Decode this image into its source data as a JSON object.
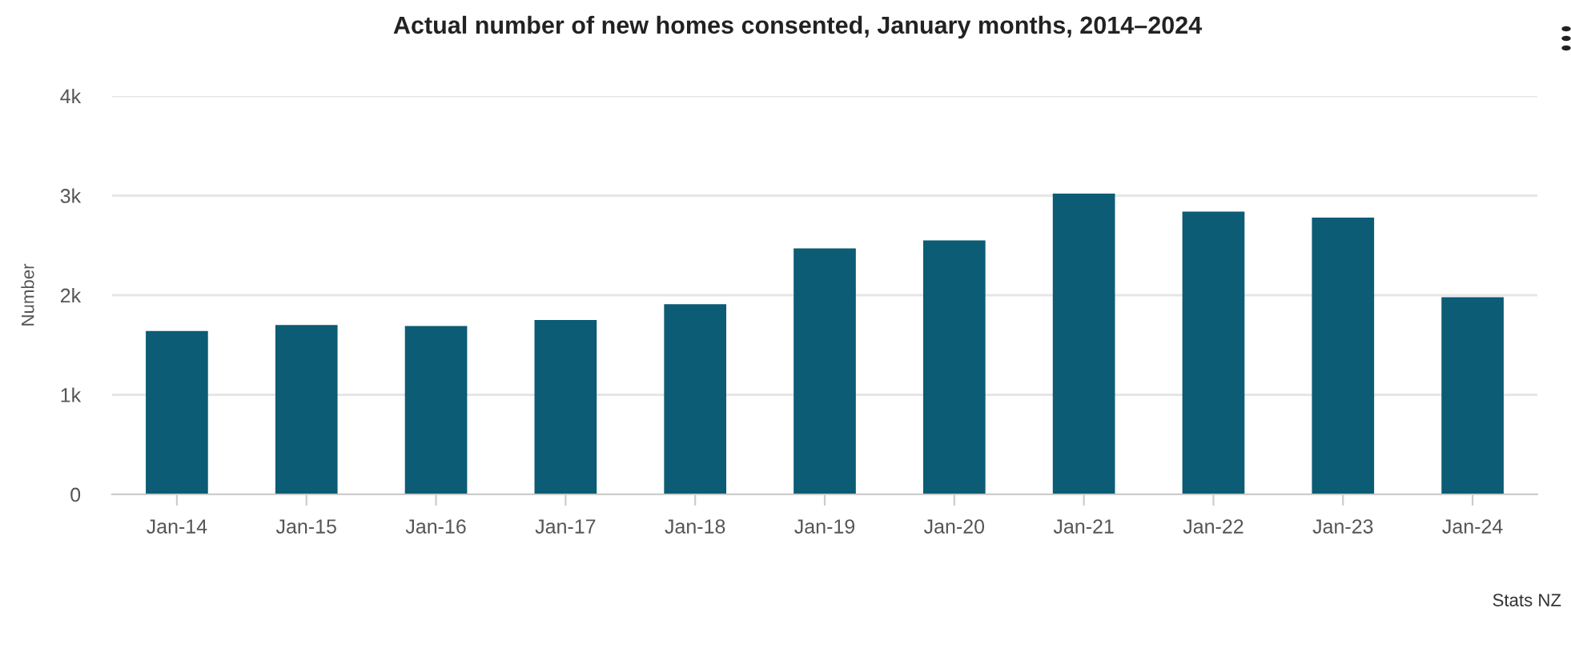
{
  "chart_data": {
    "type": "bar",
    "title": "Actual number of new homes consented, January months, 2014–2024",
    "ylabel": "Number",
    "categories": [
      "Jan-14",
      "Jan-15",
      "Jan-16",
      "Jan-17",
      "Jan-18",
      "Jan-19",
      "Jan-20",
      "Jan-21",
      "Jan-22",
      "Jan-23",
      "Jan-24"
    ],
    "values": [
      1640,
      1700,
      1690,
      1750,
      1910,
      2470,
      2550,
      3020,
      2840,
      2780,
      1980
    ],
    "color": "#0b5c74",
    "ylim": [
      0,
      4000
    ],
    "yticks": [
      0,
      {
        "value": 1000,
        "label": "1k"
      },
      {
        "value": 2000,
        "label": "2k"
      },
      {
        "value": 3000,
        "label": "3k"
      },
      {
        "value": 4000,
        "label": "4k"
      }
    ],
    "grid": "y",
    "legend": false,
    "annotations": [
      "Stats NZ"
    ]
  }
}
